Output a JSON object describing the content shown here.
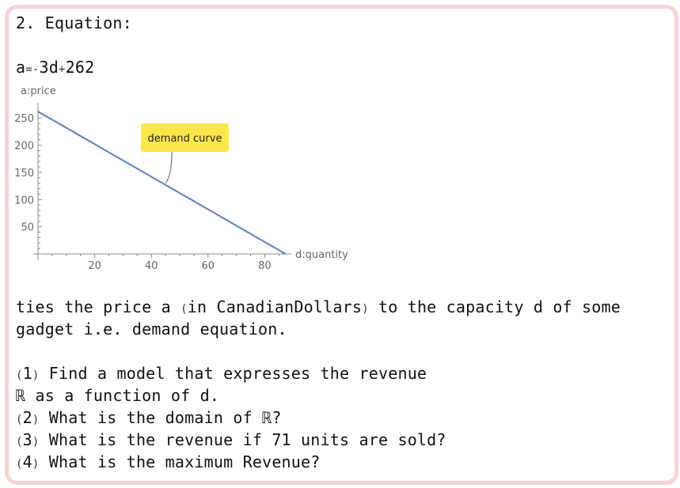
{
  "heading": "2. Equation:",
  "equation": {
    "lhs": "a",
    "eq": "=",
    "neg": "-",
    "mid": "3d",
    "plus": "+",
    "const": "262"
  },
  "chart_data": {
    "type": "line",
    "series": [
      {
        "x": [
          0,
          87.33
        ],
        "y": [
          262,
          0
        ]
      }
    ],
    "xlabel": "d:quantity",
    "ylabel": "a:price",
    "xticks": [
      20,
      40,
      60,
      80
    ],
    "yticks": [
      50,
      100,
      150,
      200,
      250
    ],
    "xlim": [
      0,
      88
    ],
    "ylim": [
      0,
      262
    ],
    "annotation": {
      "text": "demand curve",
      "x": 45,
      "y": 127
    },
    "line_color": "#5b7fbf",
    "annotation_color": "#fbe84a"
  },
  "body": {
    "line1_a": "ties the price a ",
    "line1_paren_open": "(",
    "line1_b": "in CanadianDollars",
    "line1_paren_close": ")",
    "line1_c": " to the capacity d of some",
    "line2": "gadget i.e. demand equation.",
    "q1_num": "1",
    "q1_text": " Find a model that expresses the revenue",
    "q1_cont": "ℝ as a function of d.",
    "q2_num": "2",
    "q2_text": " What is the domain of ℝ?",
    "q3_num": "3",
    "q3_text": " What is the revenue if 71 units are sold?",
    "q4_num": "4",
    "q4_text": " What is the maximum Revenue?"
  }
}
